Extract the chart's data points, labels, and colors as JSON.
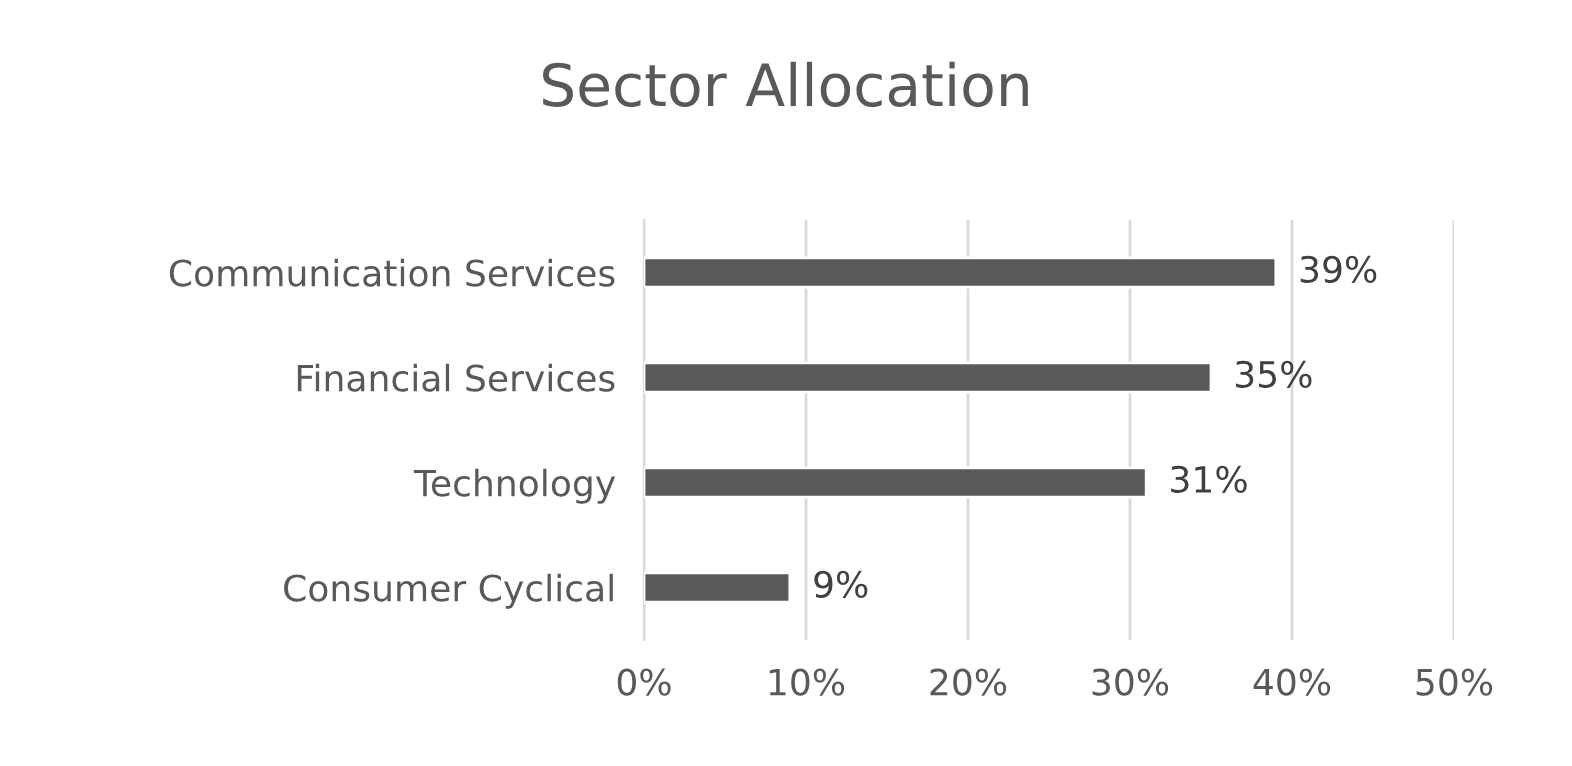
{
  "chart_data": {
    "type": "bar",
    "orientation": "horizontal",
    "title": "Sector Allocation",
    "categories": [
      "Communication Services",
      "Financial Services",
      "Technology",
      "Consumer Cyclical"
    ],
    "values": [
      39,
      35,
      31,
      9
    ],
    "value_labels": [
      "39%",
      "35%",
      "31%",
      "9%"
    ],
    "color": "#595959",
    "xlim": [
      0,
      50
    ],
    "xticks": [
      {
        "value": 0,
        "label": "0%"
      },
      {
        "value": 10,
        "label": "10%"
      },
      {
        "value": 20,
        "label": "20%"
      },
      {
        "value": 30,
        "label": "30%"
      },
      {
        "value": 40,
        "label": "40%"
      },
      {
        "value": 50,
        "label": "50%"
      }
    ],
    "grid": "x"
  }
}
